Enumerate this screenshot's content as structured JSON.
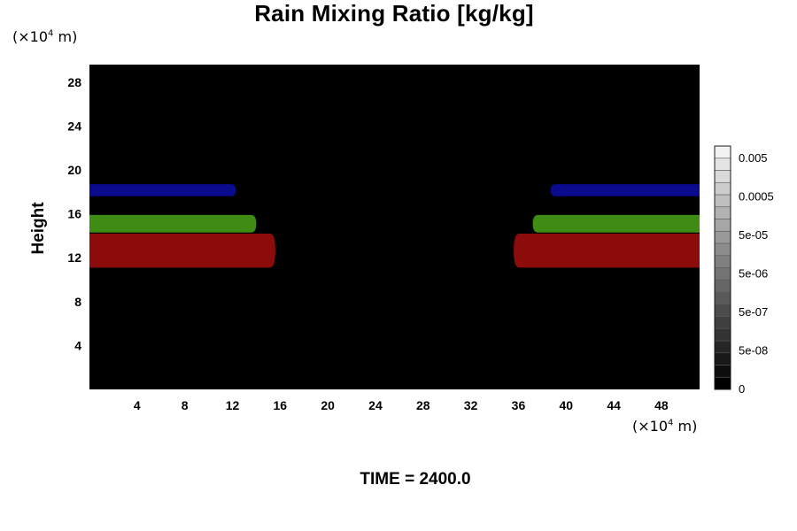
{
  "chart_data": {
    "type": "heatmap",
    "title": "Rain Mixing Ratio [kg/kg]",
    "ylabel": "Height",
    "x_unit": {
      "prefix": "(×10",
      "exp": "4",
      "suffix": " m)"
    },
    "y_unit": {
      "prefix": "(×10",
      "exp": "4",
      "suffix": " m)"
    },
    "xlim": [
      0,
      51.2
    ],
    "ylim": [
      0,
      29.6
    ],
    "x_ticks": [
      4,
      8,
      12,
      16,
      20,
      24,
      28,
      32,
      36,
      40,
      44,
      48
    ],
    "y_ticks": [
      4,
      8,
      12,
      16,
      20,
      24,
      28
    ],
    "background_color": "#000000",
    "bands": [
      {
        "color": "#0a0a8c",
        "y": [
          17.6,
          18.7
        ],
        "x_left_end": 12.3,
        "x_right_start": 38.7
      },
      {
        "color": "#3e8c14",
        "y": [
          14.3,
          15.9
        ],
        "x_left_end": 14.0,
        "x_right_start": 37.2
      },
      {
        "color": "#8c0c0c",
        "y": [
          11.1,
          14.2
        ],
        "x_left_end": 15.6,
        "x_right_start": 35.6
      }
    ],
    "colorbar": {
      "labels": [
        "0.005",
        "0.0005",
        "5e-05",
        "5e-06",
        "5e-07",
        "5e-08",
        "0"
      ],
      "levels": 20,
      "color_low": "#000000",
      "color_high": "#f2f2f2"
    }
  },
  "footer": {
    "time_label": "TIME = 2400.0"
  }
}
